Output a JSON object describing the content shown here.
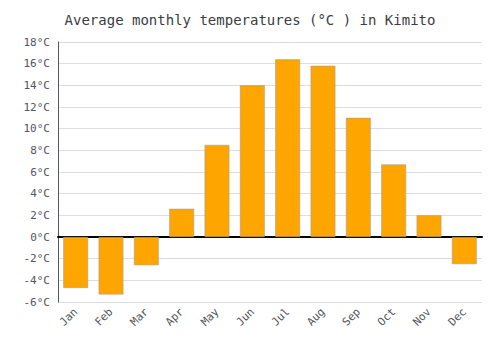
{
  "chart_data": {
    "type": "bar",
    "title": "Average monthly temperatures (°C ) in Kimito",
    "categories": [
      "Jan",
      "Feb",
      "Mar",
      "Apr",
      "May",
      "Jun",
      "Jul",
      "Aug",
      "Sep",
      "Oct",
      "Nov",
      "Dec"
    ],
    "values": [
      -4.7,
      -5.3,
      -2.6,
      2.6,
      8.5,
      14.0,
      16.4,
      15.8,
      11.0,
      6.7,
      2.0,
      -2.5
    ],
    "color": "#FFA500",
    "ylim": [
      -6,
      18
    ],
    "yticks": [
      {
        "value": -6,
        "label": "-6°C"
      },
      {
        "value": -4,
        "label": "-4°C"
      },
      {
        "value": -2,
        "label": "-2°C"
      },
      {
        "value": 0,
        "label": "0°C"
      },
      {
        "value": 2,
        "label": "2°C"
      },
      {
        "value": 4,
        "label": "4°C"
      },
      {
        "value": 6,
        "label": "6°C"
      },
      {
        "value": 8,
        "label": "8°C"
      },
      {
        "value": 10,
        "label": "10°C"
      },
      {
        "value": 12,
        "label": "12°C"
      },
      {
        "value": 14,
        "label": "14°C"
      },
      {
        "value": 16,
        "label": "16°C"
      },
      {
        "value": 18,
        "label": "18°C"
      }
    ],
    "grid": true
  }
}
